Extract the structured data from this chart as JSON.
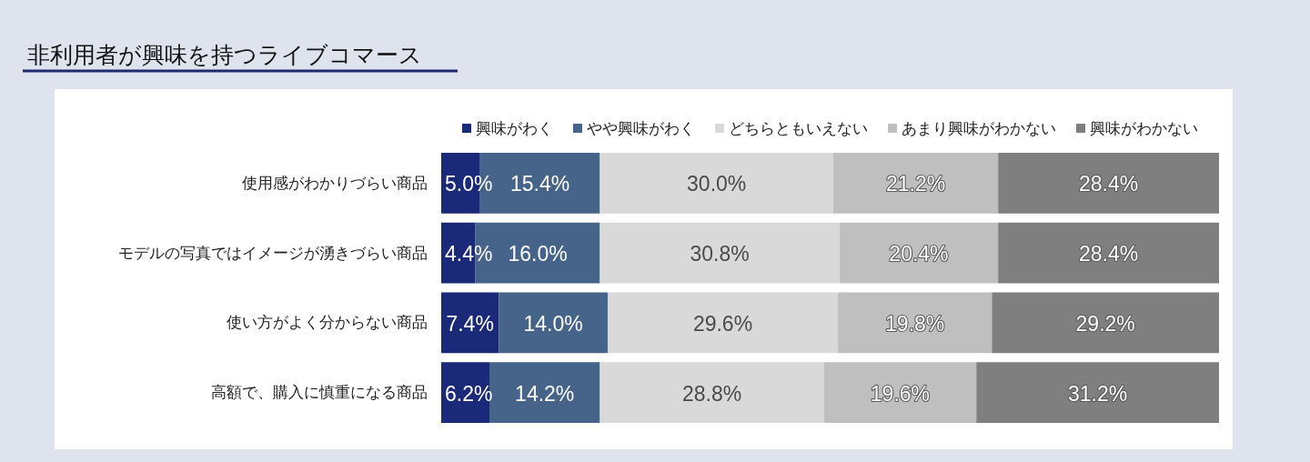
{
  "chart_data": {
    "type": "bar",
    "orientation": "horizontal",
    "stacked": true,
    "title": "非利用者が興味を持つライブコマース",
    "categories": [
      "使用感がわかりづらい商品",
      "モデルの写真ではイメージが湧きづらい商品",
      "使い方がよく分からない商品",
      "高額で、購入に慎重になる商品"
    ],
    "series": [
      {
        "name": "興味がわく",
        "color": "#1b2a78",
        "values": [
          5.0,
          4.4,
          7.4,
          6.2
        ],
        "value_labels": [
          "5.0%",
          "4.4%",
          "7.4%",
          "6.2%"
        ]
      },
      {
        "name": "やや興味がわく",
        "color": "#46648a",
        "values": [
          15.4,
          16.0,
          14.0,
          14.2
        ],
        "value_labels": [
          "15.4%",
          "16.0%",
          "14.0%",
          "14.2%"
        ]
      },
      {
        "name": "どちらともいえない",
        "color": "#d9d9d9",
        "values": [
          30.0,
          30.8,
          29.6,
          28.8
        ],
        "value_labels": [
          "30.0%",
          "30.8%",
          "29.6%",
          "28.8%"
        ]
      },
      {
        "name": "あまり興味がわかない",
        "color": "#bfbfbf",
        "values": [
          21.2,
          20.4,
          19.8,
          19.6
        ],
        "value_labels": [
          "21.2%",
          "20.4%",
          "19.8%",
          "19.6%"
        ]
      },
      {
        "name": "興味がわかない",
        "color": "#7f7f7f",
        "values": [
          28.4,
          28.4,
          29.2,
          31.2
        ],
        "value_labels": [
          "28.4%",
          "28.4%",
          "29.2%",
          "31.2%"
        ]
      }
    ],
    "legend": "top",
    "tick_labels": "y"
  }
}
